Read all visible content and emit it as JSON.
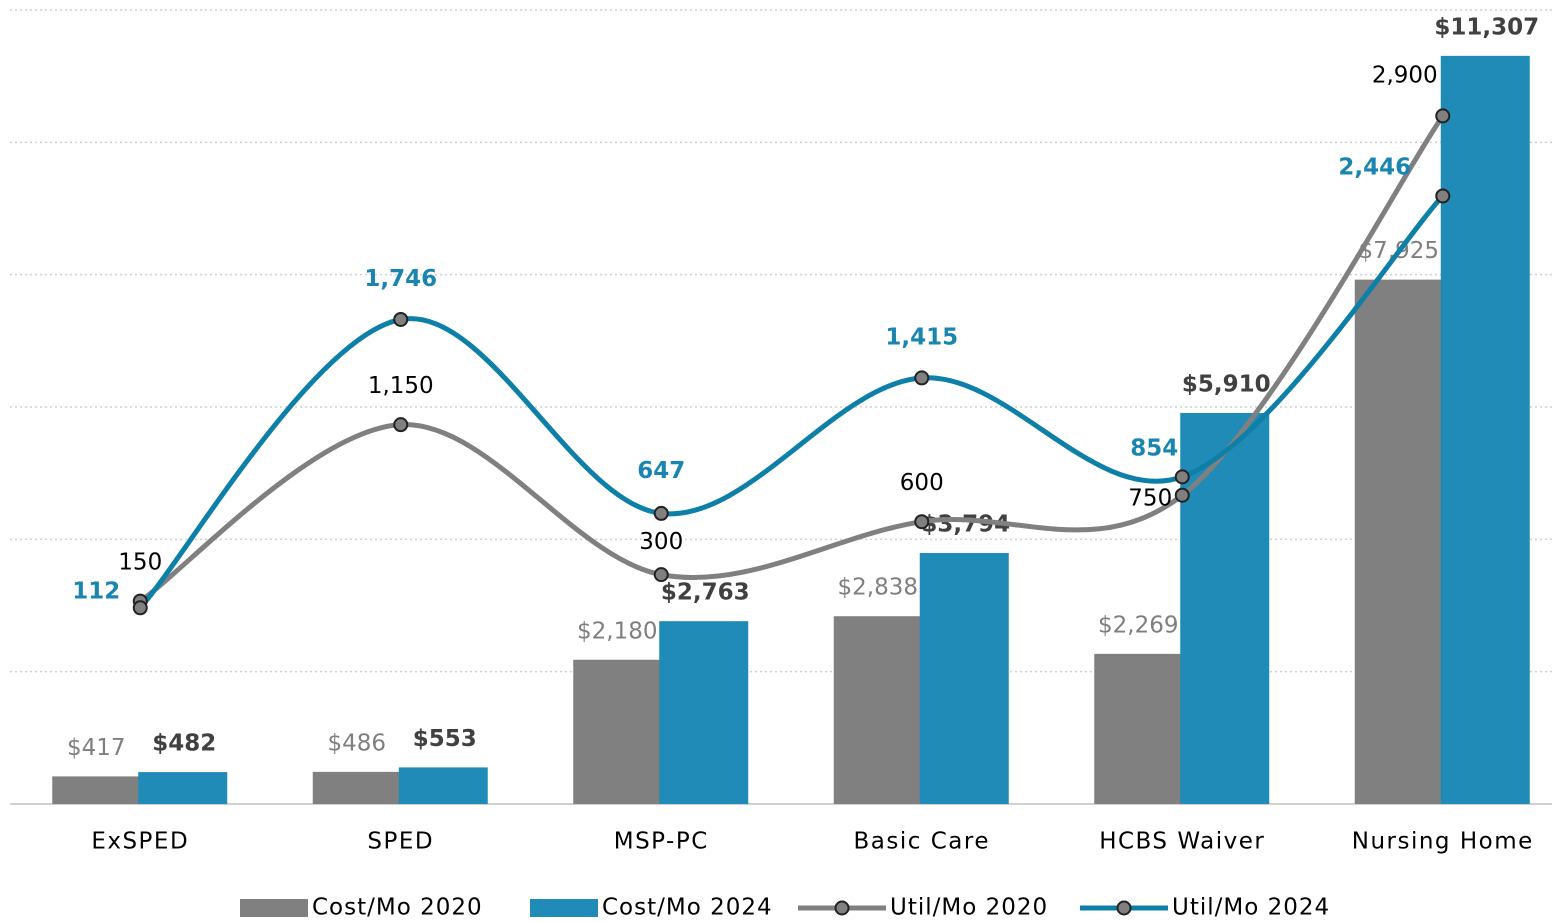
{
  "chart_data": {
    "type": "bar",
    "categories": [
      "ExSPED",
      "SPED",
      "MSP-PC",
      "Basic Care",
      "HCBS Waiver",
      "Nursing Home"
    ],
    "series": [
      {
        "name": "Cost/Mo 2020",
        "type": "bar",
        "color": "#808080",
        "values": [
          417,
          486,
          2180,
          2838,
          2269,
          7925
        ],
        "value_labels": [
          "$417",
          "$486",
          "$2,180",
          "$2,838",
          "$2,269",
          "$7,925"
        ]
      },
      {
        "name": "Cost/Mo 2024",
        "type": "bar",
        "color": "#1f8bb6",
        "values": [
          482,
          553,
          2763,
          3794,
          5910,
          11307
        ],
        "value_labels": [
          "$482",
          "$553",
          "$2,763",
          "$3,794",
          "$5,910",
          "$11,307"
        ]
      },
      {
        "name": "Util/Mo 2020",
        "type": "line",
        "axis": "y2",
        "color": "#808080",
        "values": [
          150,
          1150,
          300,
          600,
          750,
          2900
        ],
        "value_labels": [
          "150",
          "1,150",
          "300",
          "600",
          "750",
          "2,900"
        ]
      },
      {
        "name": "Util/Mo 2024",
        "type": "line",
        "axis": "y2",
        "color": "#0e80a8",
        "values": [
          112,
          1746,
          647,
          1415,
          854,
          2446
        ],
        "value_labels": [
          "112",
          "1,746",
          "647",
          "1,415",
          "854",
          "2,446"
        ]
      }
    ],
    "ylim": [
      0,
      12000
    ],
    "yticks": [
      0,
      2000,
      4000,
      6000,
      8000,
      10000,
      12000
    ],
    "y2lim": [
      -1000,
      3500
    ],
    "grid": true,
    "legend": "bottom"
  }
}
